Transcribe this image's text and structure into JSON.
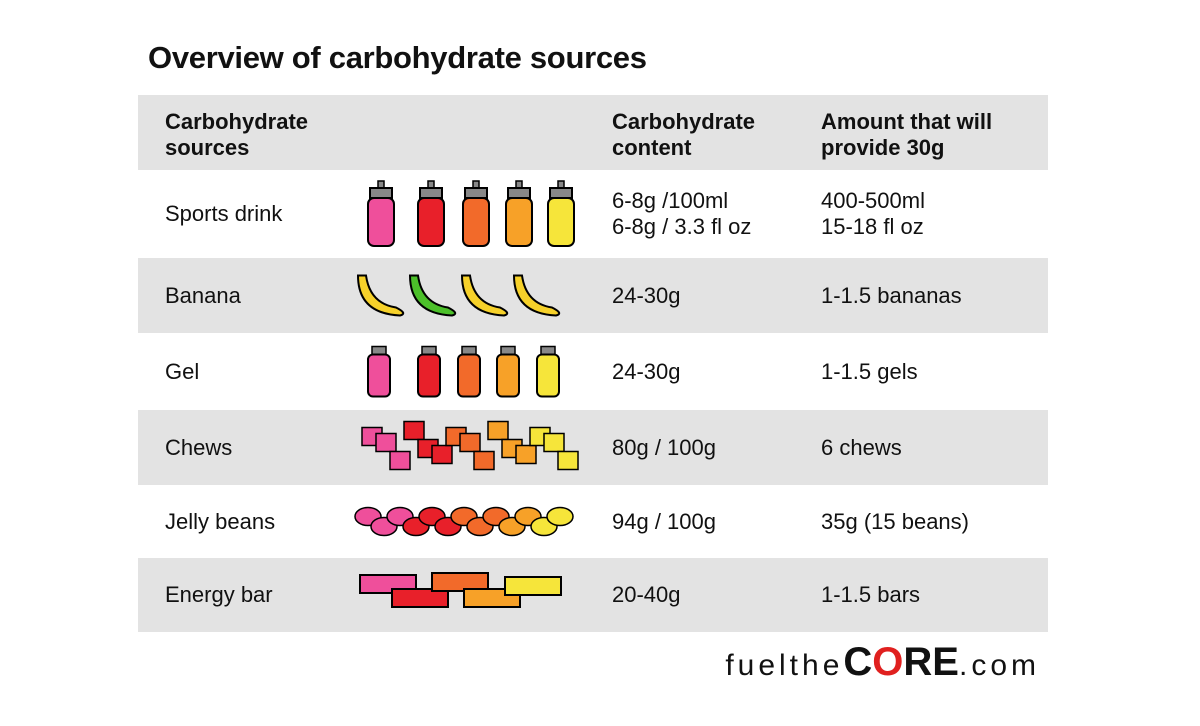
{
  "title": "Overview of carbohydrate sources",
  "table": {
    "header": [
      "Carbohydrate sources",
      "Carbohydrate content",
      "Amount that will provide 30g"
    ],
    "rows": [
      {
        "source": "Sports drink",
        "content": [
          "6-8g /100ml",
          "6-8g / 3.3 fl oz"
        ],
        "amount": [
          "400-500ml",
          "15-18 fl oz"
        ]
      },
      {
        "source": "Banana",
        "content": [
          "24-30g"
        ],
        "amount": [
          "1-1.5 bananas"
        ]
      },
      {
        "source": "Gel",
        "content": [
          "24-30g"
        ],
        "amount": [
          "1-1.5 gels"
        ]
      },
      {
        "source": "Chews",
        "content": [
          "80g / 100g"
        ],
        "amount": [
          "6 chews"
        ]
      },
      {
        "source": "Jelly beans",
        "content": [
          "94g / 100g"
        ],
        "amount": [
          "35g (15 beans)"
        ]
      },
      {
        "source": "Energy bar",
        "content": [
          "20-40g"
        ],
        "amount": [
          "1-1.5 bars"
        ]
      }
    ]
  },
  "brand": {
    "prefix": "fuelthe",
    "c": "C",
    "o": "O",
    "re": "RE",
    "suffix": ".com"
  }
}
